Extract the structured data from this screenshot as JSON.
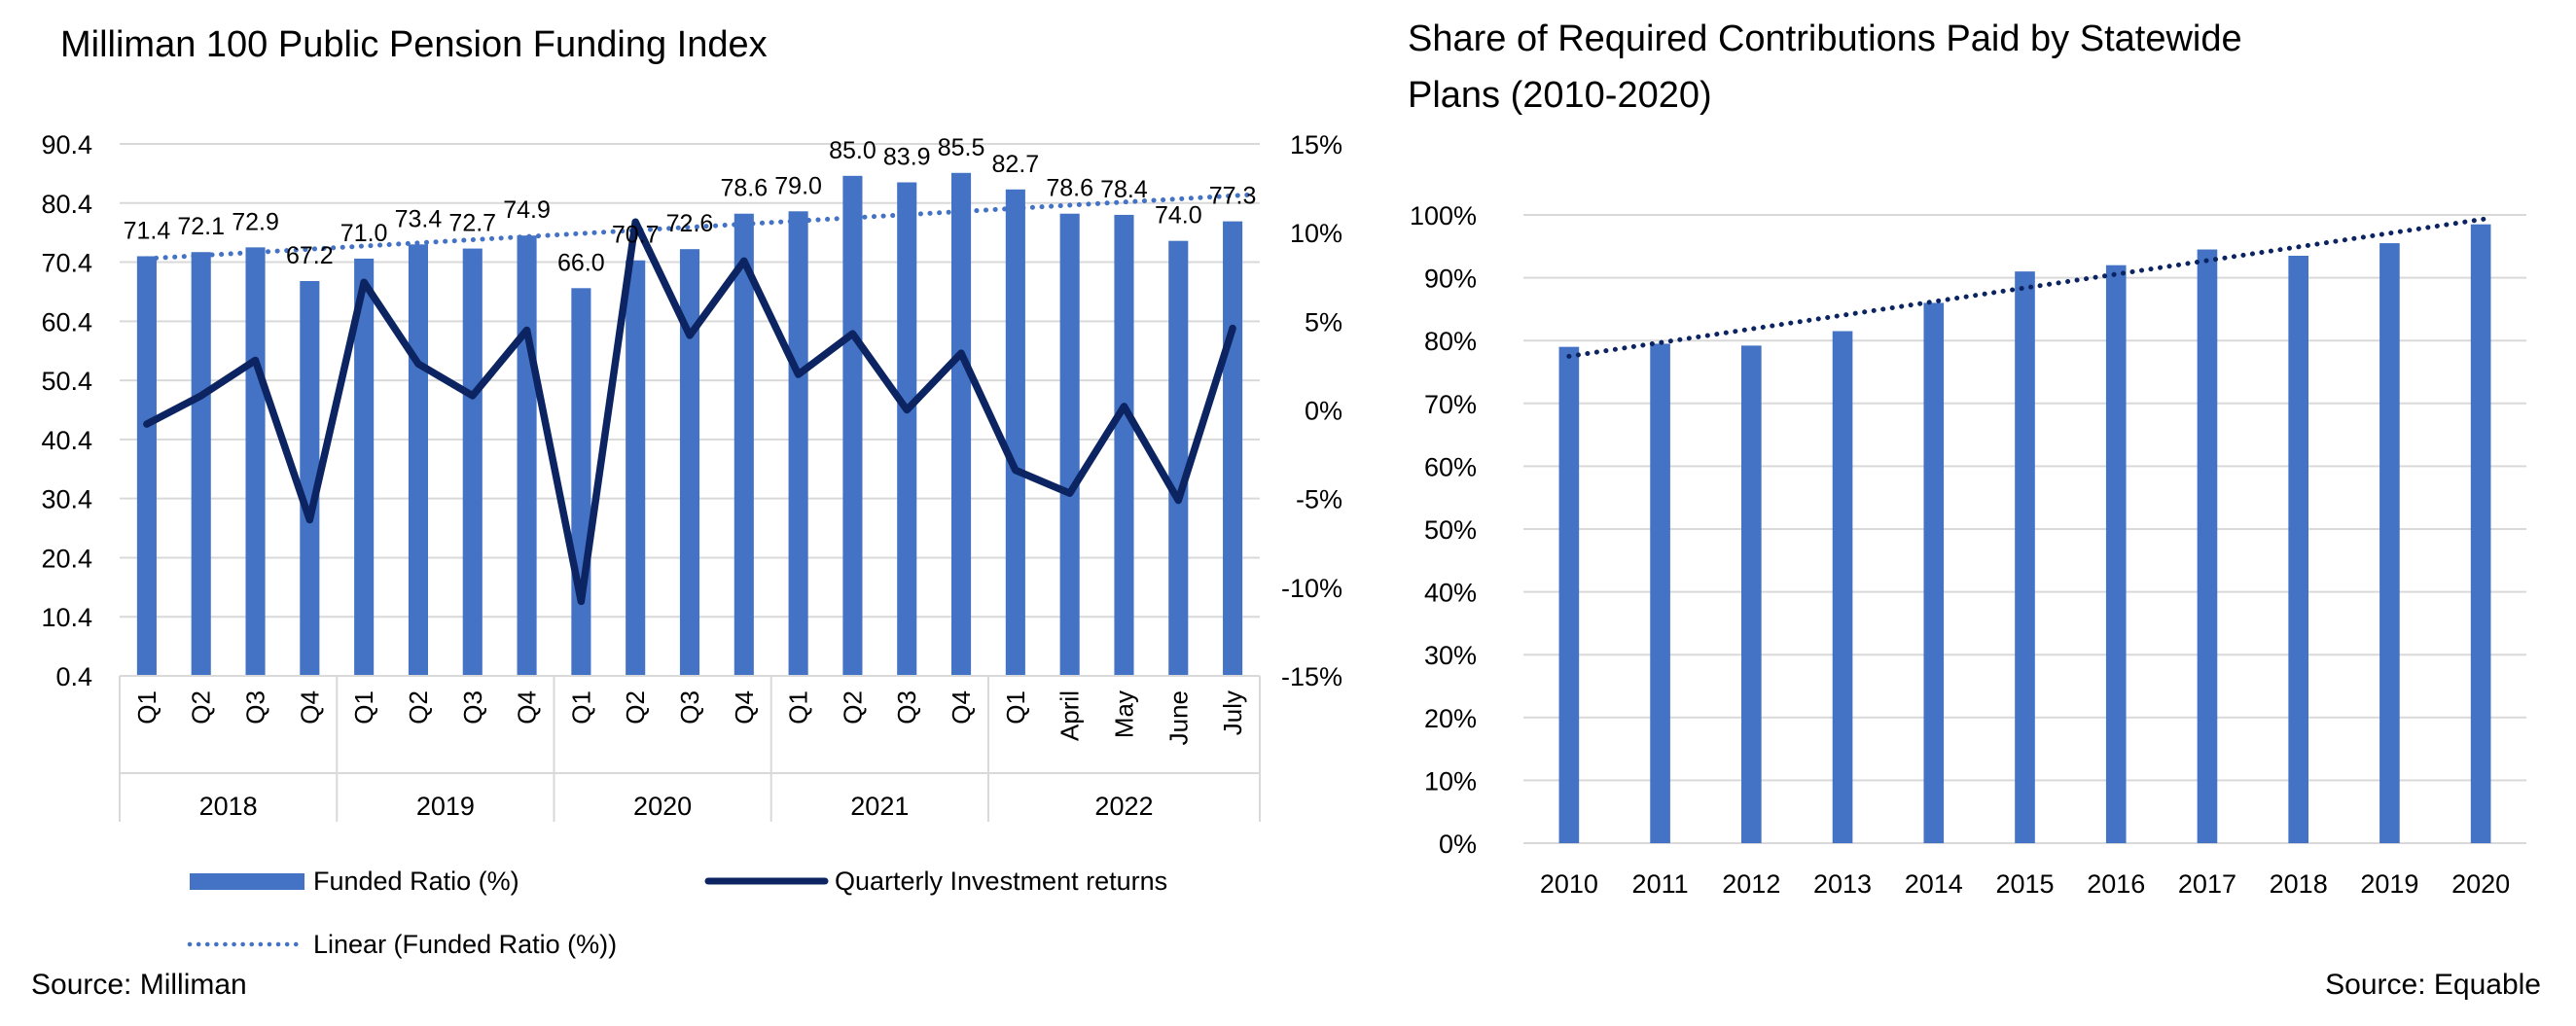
{
  "colors": {
    "bar": "#4472C4",
    "line": "#0C2461",
    "trend_left": "#4472C4",
    "trend_right": "#0C2461",
    "grid": "#D9D9D9",
    "axis_text": "#000000"
  },
  "left": {
    "source": "Source: Milliman",
    "chart_data": {
      "type": "bar",
      "title": "Milliman 100 Public Pension Funding Index",
      "categories": [
        "Q1",
        "Q2",
        "Q3",
        "Q4",
        "Q1",
        "Q2",
        "Q3",
        "Q4",
        "Q1",
        "Q2",
        "Q3",
        "Q4",
        "Q1",
        "Q2",
        "Q3",
        "Q4",
        "Q1",
        "April",
        "May",
        "June",
        "July"
      ],
      "groups": [
        {
          "label": "2018",
          "count": 4
        },
        {
          "label": "2019",
          "count": 4
        },
        {
          "label": "2020",
          "count": 4
        },
        {
          "label": "2021",
          "count": 4
        },
        {
          "label": "2022",
          "count": 5
        }
      ],
      "series": [
        {
          "name": "Funded Ratio (%)",
          "type": "bar",
          "axis": "left",
          "values": [
            71.4,
            72.1,
            72.9,
            67.2,
            71.0,
            73.4,
            72.7,
            74.9,
            66.0,
            70.7,
            72.6,
            78.6,
            79.0,
            85.0,
            83.9,
            85.5,
            82.7,
            78.6,
            78.4,
            74.0,
            77.3
          ],
          "labels": [
            "71.4",
            "72.1",
            "72.9",
            "67.2",
            "71.0",
            "73.4",
            "72.7",
            "74.9",
            "66.0",
            "70.7",
            "72.6",
            "78.6",
            "79.0",
            "85.0",
            "83.9",
            "85.5",
            "82.7",
            "78.6",
            "78.4",
            "74.0",
            "77.3"
          ]
        },
        {
          "name": "Quarterly Investment returns",
          "type": "line",
          "axis": "right",
          "values": [
            -0.8,
            0.8,
            2.8,
            -6.2,
            7.2,
            2.6,
            0.8,
            4.5,
            -10.8,
            10.6,
            4.2,
            8.4,
            2.0,
            4.3,
            0.0,
            3.2,
            -3.4,
            -4.7,
            0.2,
            -5.1,
            4.6
          ]
        },
        {
          "name": "Linear (Funded Ratio (%))",
          "type": "trendline",
          "axis": "left",
          "start": 71.0,
          "end": 81.8
        }
      ],
      "yleft": {
        "ylim": [
          0.4,
          90.4
        ],
        "ticks": [
          "0.4",
          "10.4",
          "20.4",
          "30.4",
          "40.4",
          "50.4",
          "60.4",
          "70.4",
          "80.4",
          "90.4"
        ]
      },
      "yright": {
        "ylim": [
          -15,
          15
        ],
        "ticks": [
          "-15%",
          "-10%",
          "-5%",
          "0%",
          "5%",
          "10%",
          "15%"
        ]
      },
      "grid": true,
      "legend_position": "bottom"
    }
  },
  "right": {
    "source": "Source: Equable",
    "chart_data": {
      "type": "bar",
      "title": "Share of Required Contributions Paid by Statewide Plans (2010-2020)",
      "title_lines": [
        "Share of Required Contributions Paid by Statewide",
        "Plans (2010-2020)"
      ],
      "categories": [
        "2010",
        "2011",
        "2012",
        "2013",
        "2014",
        "2015",
        "2016",
        "2017",
        "2018",
        "2019",
        "2020"
      ],
      "values": [
        79,
        79.5,
        79.2,
        81.5,
        86,
        91,
        92,
        94.5,
        93.5,
        95.5,
        98.5
      ],
      "trendline": {
        "start": 77.5,
        "end": 99.5
      },
      "ylim": [
        0,
        100
      ],
      "ticks": [
        "0%",
        "10%",
        "20%",
        "30%",
        "40%",
        "50%",
        "60%",
        "70%",
        "80%",
        "90%",
        "100%"
      ],
      "grid": true,
      "legend": false
    }
  }
}
